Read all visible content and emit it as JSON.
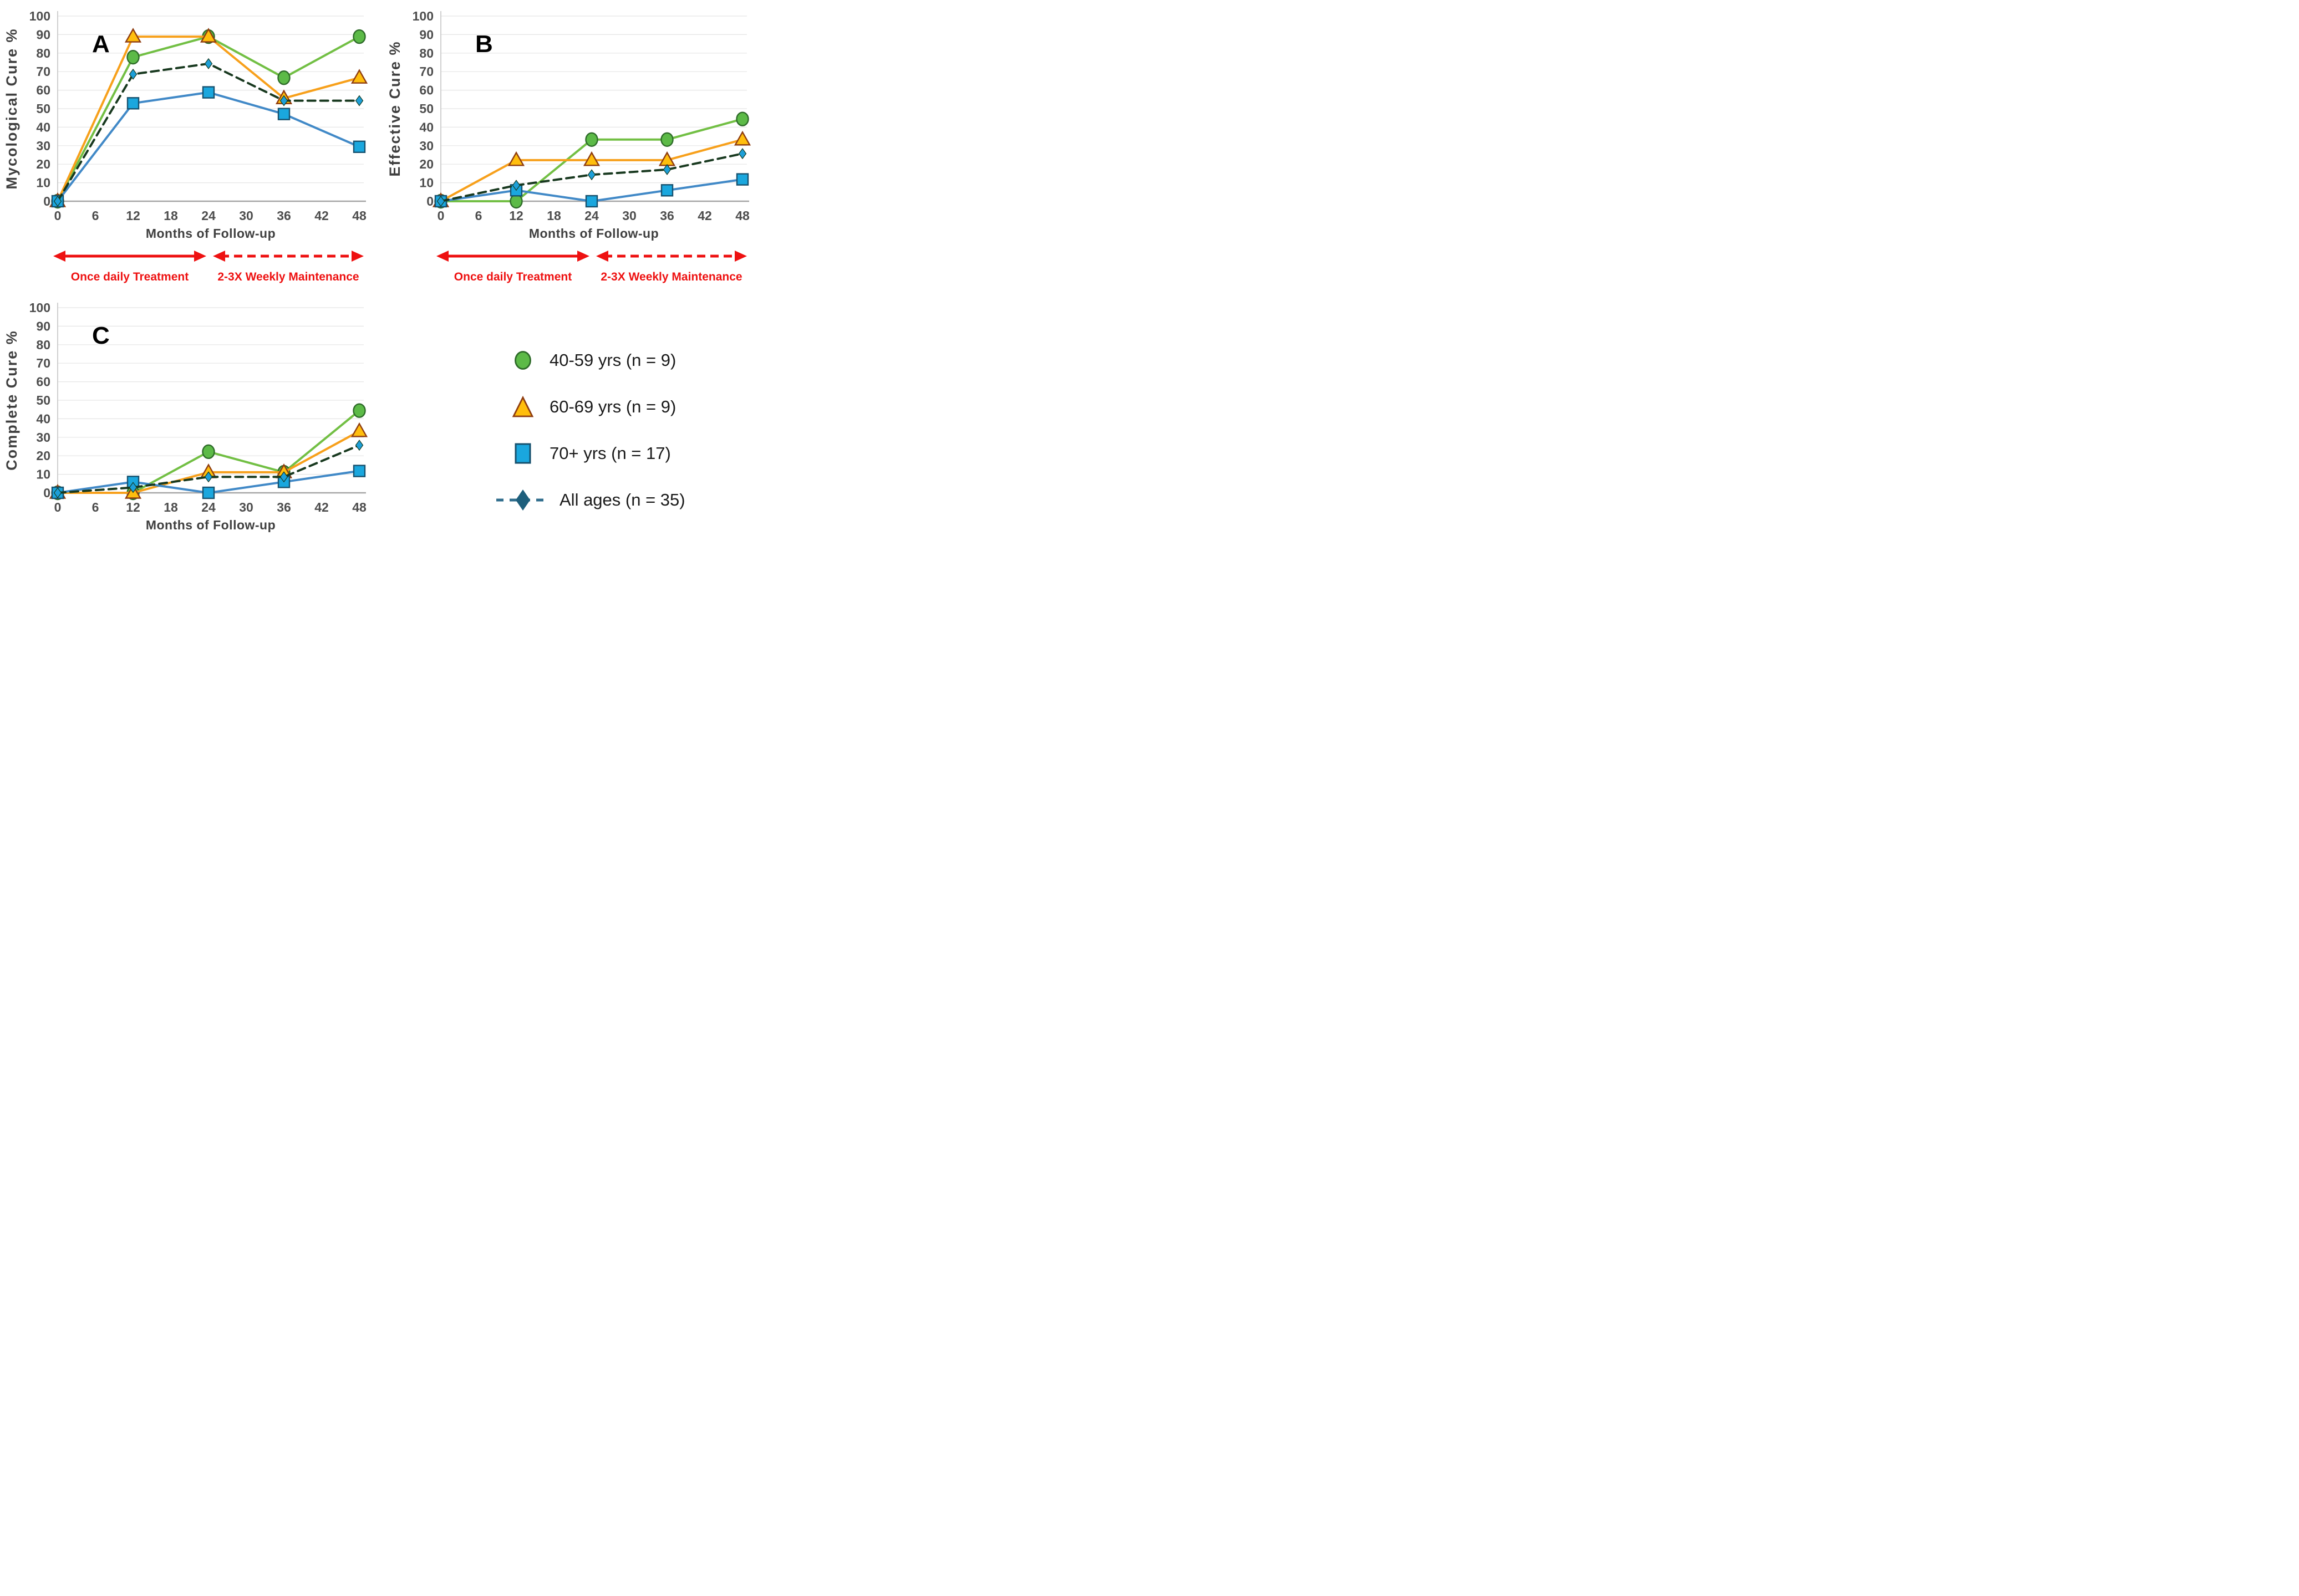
{
  "figure": {
    "phases": {
      "solid_label": "Once daily Treatment",
      "dashed_label": "2-3X Weekly Maintenance",
      "color": "#EE1111",
      "solid_span": [
        0,
        24
      ],
      "dashed_span": [
        24,
        48
      ]
    },
    "legend": {
      "items": [
        {
          "label": "40-59 yrs (n = 9)",
          "marker": "circle",
          "fill": "#5CBA47",
          "edge": "#2E6B29"
        },
        {
          "label": "60-69 yrs (n = 9)",
          "marker": "triangle",
          "fill": "#FFBE0D",
          "edge": "#8F3D10"
        },
        {
          "label": "70+ yrs (n = 17)",
          "marker": "square",
          "fill": "#1AA7DE",
          "edge": "#17516E"
        },
        {
          "label": "All ages (n = 35)",
          "marker": "diamond",
          "fill": "#1E5F7C",
          "dash_color": "#2F6D8C"
        }
      ]
    },
    "style": {
      "grid_color": "#E5E5E5",
      "baseline_color": "#A6A6A6",
      "axis_line_color": "#C4C4C4",
      "tick_color": "#4D4D4D",
      "title_color": "#3F3F3F",
      "background": "#FFFFFF"
    }
  },
  "chart_data": [
    {
      "type": "line",
      "panel_label": "A",
      "ylabel": "Mycological Cure %",
      "xlabel": "Months of Follow-up",
      "x": [
        0,
        12,
        24,
        36,
        48
      ],
      "x_ticks": [
        0,
        6,
        12,
        18,
        24,
        30,
        36,
        42,
        48
      ],
      "xlim": [
        0,
        48
      ],
      "y_ticks": [
        0,
        10,
        20,
        30,
        40,
        50,
        60,
        70,
        80,
        90,
        100
      ],
      "ylim": [
        0,
        100
      ],
      "grid": "horizontal",
      "legend_position": "none",
      "phase_arrows": true,
      "series": [
        {
          "name": "40-59 yrs (n = 9)",
          "marker": "circle",
          "line_color": "#72BF44",
          "fill": "#5CBA47",
          "edge": "#2E6B29",
          "values": [
            0,
            77.8,
            88.9,
            66.7,
            88.9
          ]
        },
        {
          "name": "60-69 yrs (n = 9)",
          "marker": "triangle",
          "line_color": "#F7A01B",
          "fill": "#FFBE0D",
          "edge": "#8F3D10",
          "values": [
            0,
            88.9,
            88.9,
            55.6,
            66.7
          ]
        },
        {
          "name": "70+ yrs (n = 17)",
          "marker": "square",
          "line_color": "#4189C7",
          "fill": "#1AA7DE",
          "edge": "#17516E",
          "values": [
            0,
            52.9,
            58.8,
            47.1,
            29.4
          ]
        },
        {
          "name": "All ages (n = 35)",
          "marker": "diamond",
          "line_color": "#18391F",
          "dash": true,
          "fill": "#1D9FD8",
          "edge": "#143A20",
          "values": [
            0,
            68.6,
            74.3,
            54.3,
            54.3
          ]
        }
      ]
    },
    {
      "type": "line",
      "panel_label": "B",
      "ylabel": "Effective Cure %",
      "xlabel": "Months of Follow-up",
      "x": [
        0,
        12,
        24,
        36,
        48
      ],
      "x_ticks": [
        0,
        6,
        12,
        18,
        24,
        30,
        36,
        42,
        48
      ],
      "xlim": [
        0,
        48
      ],
      "y_ticks": [
        0,
        10,
        20,
        30,
        40,
        50,
        60,
        70,
        80,
        90,
        100
      ],
      "ylim": [
        0,
        100
      ],
      "grid": "horizontal",
      "legend_position": "none",
      "phase_arrows": true,
      "series": [
        {
          "name": "40-59 yrs (n = 9)",
          "marker": "circle",
          "line_color": "#72BF44",
          "fill": "#5CBA47",
          "edge": "#2E6B29",
          "values": [
            0,
            0,
            33.3,
            33.3,
            44.4
          ]
        },
        {
          "name": "60-69 yrs (n = 9)",
          "marker": "triangle",
          "line_color": "#F7A01B",
          "fill": "#FFBE0D",
          "edge": "#8F3D10",
          "values": [
            0,
            22.2,
            22.2,
            22.2,
            33.3
          ]
        },
        {
          "name": "70+ yrs (n = 17)",
          "marker": "square",
          "line_color": "#4189C7",
          "fill": "#1AA7DE",
          "edge": "#17516E",
          "values": [
            0,
            5.9,
            0,
            5.9,
            11.8
          ]
        },
        {
          "name": "All ages (n = 35)",
          "marker": "diamond",
          "line_color": "#18391F",
          "dash": true,
          "fill": "#1D9FD8",
          "edge": "#143A20",
          "values": [
            0,
            8.6,
            14.3,
            17.1,
            25.7
          ]
        }
      ]
    },
    {
      "type": "line",
      "panel_label": "C",
      "ylabel": "Complete Cure %",
      "xlabel": "Months of Follow-up",
      "x": [
        0,
        12,
        24,
        36,
        48
      ],
      "x_ticks": [
        0,
        6,
        12,
        18,
        24,
        30,
        36,
        42,
        48
      ],
      "xlim": [
        0,
        48
      ],
      "y_ticks": [
        0,
        10,
        20,
        30,
        40,
        50,
        60,
        70,
        80,
        90,
        100
      ],
      "ylim": [
        0,
        100
      ],
      "grid": "horizontal",
      "legend_position": "none",
      "phase_arrows": false,
      "series": [
        {
          "name": "40-59 yrs (n = 9)",
          "marker": "circle",
          "line_color": "#72BF44",
          "fill": "#5CBA47",
          "edge": "#2E6B29",
          "values": [
            0,
            0,
            22.2,
            11.1,
            44.4
          ]
        },
        {
          "name": "60-69 yrs (n = 9)",
          "marker": "triangle",
          "line_color": "#F7A01B",
          "fill": "#FFBE0D",
          "edge": "#8F3D10",
          "values": [
            0,
            0,
            11.1,
            11.1,
            33.3
          ]
        },
        {
          "name": "70+ yrs (n = 17)",
          "marker": "square",
          "line_color": "#4189C7",
          "fill": "#1AA7DE",
          "edge": "#17516E",
          "values": [
            0,
            5.9,
            0,
            5.9,
            11.8
          ]
        },
        {
          "name": "All ages (n = 35)",
          "marker": "diamond",
          "line_color": "#18391F",
          "dash": true,
          "fill": "#1D9FD8",
          "edge": "#143A20",
          "values": [
            0,
            2.9,
            8.6,
            8.6,
            25.7
          ]
        }
      ]
    }
  ]
}
